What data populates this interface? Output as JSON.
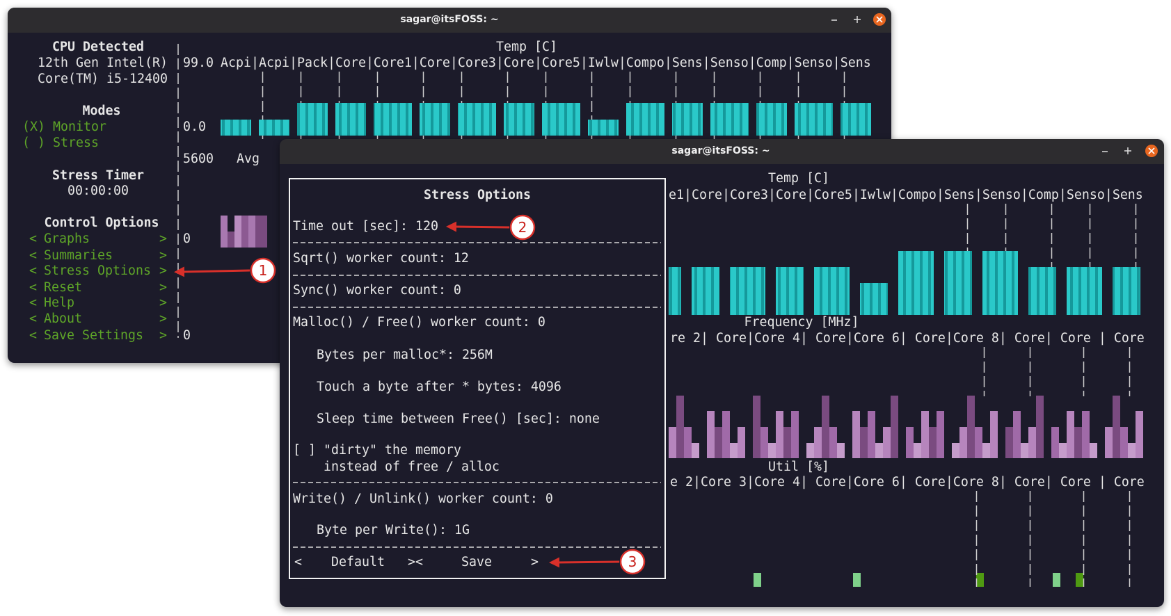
{
  "back_window": {
    "title": "sagar@itsFOSS: ~",
    "left_panel": {
      "cpu_heading": "CPU Detected",
      "cpu_name": [
        "12th Gen Intel(R)",
        "Core(TM) i5-12400"
      ],
      "modes_heading": "Modes",
      "modes": [
        "(X) Monitor",
        "( ) Stress"
      ],
      "timer_heading": "Stress Timer",
      "timer": "00:00:00",
      "control_heading": "Control Options",
      "menu": [
        "Graphs",
        "Summaries",
        "Stress Options",
        "Reset",
        "Help",
        "About",
        "Save Settings"
      ],
      "menu_left": "<",
      "menu_right": ">"
    },
    "graphs": {
      "temp_title": "Temp [C]",
      "temp_max": "99.0",
      "temp_min": "0.0",
      "temp_labels": "Acpi|Acpi|Pack|Core|Core1|Core|Core3|Core|Core5|Iwlw|Compo|Sens|Senso|Comp|Senso|Sens",
      "freq_max": "5600",
      "freq_avg": "Avg",
      "freq_min": "0",
      "util_min": "0"
    }
  },
  "front_window": {
    "title": "sagar@itsFOSS: ~",
    "stress_options": {
      "title": "Stress Options",
      "fields": [
        "Time out [sec]: 120",
        "Sqrt() worker count: 12",
        "Sync() worker count: 0",
        "Malloc() / Free() worker count: 0",
        "Bytes per malloc*: 256M",
        "Touch a byte after * bytes: 4096",
        "Sleep time between Free() [sec]: none",
        "[ ] \"dirty\" the memory",
        "instead of free / alloc",
        "Write() / Unlink() worker count: 0",
        "Byte per Write(): 1G"
      ],
      "buttons": [
        "<",
        "Default",
        "><",
        "Save",
        ">"
      ]
    },
    "graphs": {
      "temp_title": "Temp [C]",
      "temp_labels": "e1|Core|Core3|Core|Core5|Iwlw|Compo|Sens|Senso|Comp|Senso|Sens",
      "freq_title": "Frequency [MHz]",
      "freq_labels": "re 2| Core|Core 4| Core|Core 6| Core|Core 8| Core| Core | Core",
      "util_title": "Util [%]",
      "util_labels": "e 2|Core 3|Core 4| Core|Core 6| Core|Core 8| Core| Core | Core"
    }
  },
  "annotations": [
    "1",
    "2",
    "3"
  ]
}
